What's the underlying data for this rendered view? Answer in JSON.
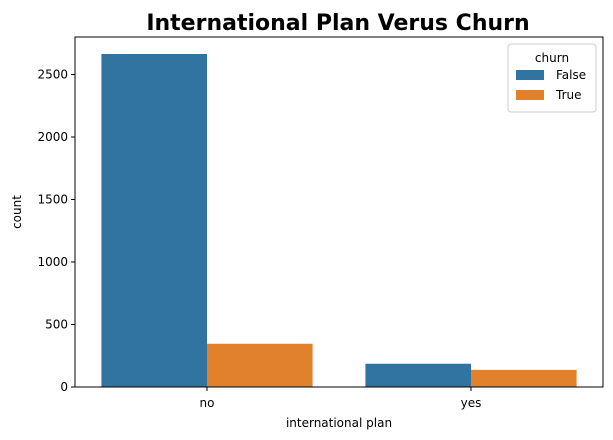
{
  "chart_data": {
    "type": "bar",
    "title": "International Plan Verus Churn",
    "xlabel": "international plan",
    "ylabel": "count",
    "categories": [
      "no",
      "yes"
    ],
    "series": [
      {
        "name": "False",
        "color": "#3274a1",
        "values": [
          2664,
          186
        ]
      },
      {
        "name": "True",
        "color": "#e1812c",
        "values": [
          346,
          137
        ]
      }
    ],
    "ylim": [
      0,
      2800
    ],
    "yticks": [
      0,
      500,
      1000,
      1500,
      2000,
      2500
    ],
    "legend": {
      "title": "churn",
      "placement": "top-right"
    },
    "grid": false
  }
}
